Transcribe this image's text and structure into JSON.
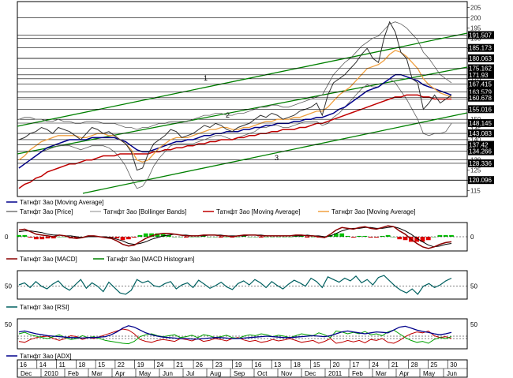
{
  "colors": {
    "price": "#303030",
    "bollinger": "#606060",
    "ma_long": "#c00000",
    "ma_mid": "#00008b",
    "ma_short": "#f0a040",
    "channel": "#008000",
    "macd": "#8b0000",
    "macd_signal": "#000000",
    "macd_hist_pos": "#00c000",
    "macd_hist_neg": "#e00000",
    "rsi": "#006060",
    "adx": "#00008b",
    "di_plus": "#00a000",
    "di_minus": "#c00000",
    "grid": "#000000"
  },
  "legend": {
    "main_row1": [
      "Татнфт 3ао [Moving Average]"
    ],
    "main_row2": [
      "Татнфт 3ао [Price]",
      "Татнфт 3ао [Bollinger Bands]",
      "Татнфт 3ао [Moving Average]",
      "Татнфт 3ао [Moving Average]"
    ],
    "macd_row": [
      "Татнфт 3ао [MACD]",
      "Татнфт 3ао [MACD Histogram]"
    ],
    "rsi_row": [
      "Татнфт 3ао [RSI]"
    ],
    "adx_row": [
      "Татнфт 3ао [ADX]"
    ]
  },
  "chart_data": [
    {
      "type": "line",
      "panel": "price",
      "ylim": [
        112,
        208
      ],
      "yticks": [
        115,
        120,
        125,
        130,
        135,
        140,
        145,
        150,
        155,
        160,
        165,
        170,
        175,
        180,
        185,
        190,
        195,
        200,
        205
      ],
      "value_labels": [
        "191.507",
        "185.173",
        "180.063",
        "175.162",
        "171.93",
        "167.415",
        "163.579",
        "160.678",
        "155.016",
        "148.145",
        "143.083",
        "137.42",
        "134.266",
        "128.336",
        "120.096"
      ],
      "channel_labels": [
        "1",
        "2",
        "3"
      ],
      "price": [
        140,
        141,
        143,
        144,
        146,
        145,
        143,
        146,
        145,
        144,
        142,
        140,
        143,
        146,
        145,
        143,
        144,
        142,
        140,
        138,
        134,
        125,
        126,
        133,
        138,
        140,
        142,
        145,
        144,
        141,
        142,
        143,
        145,
        147,
        146,
        148,
        147,
        145,
        144,
        146,
        147,
        148,
        150,
        152,
        151,
        153,
        152,
        150,
        151,
        152,
        154,
        155,
        156,
        158,
        152,
        162,
        168,
        170,
        172,
        175,
        178,
        182,
        185,
        180,
        178,
        190,
        198,
        193,
        183,
        180,
        170,
        168,
        155,
        158,
        162,
        158,
        160,
        162
      ],
      "bollinger_upper": [
        150,
        151,
        151,
        150,
        150,
        149,
        149,
        150,
        149,
        149,
        148,
        148,
        149,
        149,
        149,
        148,
        148,
        148,
        147,
        146,
        146,
        145,
        146,
        146,
        147,
        148,
        148,
        149,
        149,
        149,
        149,
        150,
        151,
        152,
        152,
        153,
        153,
        152,
        152,
        153,
        153,
        154,
        155,
        156,
        156,
        157,
        157,
        156,
        156,
        157,
        158,
        159,
        160,
        161,
        162,
        167,
        172,
        175,
        178,
        180,
        183,
        186,
        188,
        190,
        191,
        194,
        197,
        198,
        197,
        195,
        192,
        189,
        183,
        180,
        176,
        172,
        170,
        168
      ],
      "bollinger_lower": [
        126,
        128,
        130,
        132,
        134,
        135,
        136,
        137,
        137,
        137,
        136,
        135,
        136,
        137,
        137,
        137,
        136,
        134,
        131,
        127,
        121,
        116,
        117,
        121,
        127,
        131,
        134,
        137,
        138,
        138,
        138,
        138,
        139,
        140,
        141,
        142,
        142,
        141,
        140,
        141,
        142,
        143,
        144,
        146,
        146,
        147,
        147,
        146,
        146,
        147,
        148,
        149,
        149,
        149,
        147,
        148,
        151,
        153,
        156,
        159,
        162,
        165,
        167,
        166,
        166,
        168,
        170,
        168,
        164,
        160,
        155,
        150,
        143,
        142,
        143,
        143,
        144,
        148
      ],
      "ma_short": [
        130,
        132,
        135,
        137,
        139,
        140,
        141,
        142,
        142,
        142,
        142,
        141,
        141,
        142,
        143,
        143,
        142,
        142,
        140,
        138,
        135,
        130,
        129,
        130,
        133,
        136,
        138,
        140,
        141,
        141,
        141,
        142,
        143,
        144,
        145,
        145,
        146,
        146,
        145,
        145,
        146,
        146,
        147,
        148,
        149,
        149,
        150,
        150,
        150,
        151,
        151,
        152,
        153,
        154,
        154,
        156,
        159,
        162,
        164,
        166,
        169,
        172,
        175,
        176,
        177,
        179,
        182,
        184,
        183,
        181,
        178,
        175,
        170,
        167,
        165,
        163,
        162,
        161
      ],
      "ma_mid": [
        126,
        128,
        130,
        132,
        134,
        136,
        137,
        138,
        139,
        140,
        140,
        140,
        140,
        141,
        141,
        141,
        141,
        141,
        140,
        139,
        137,
        135,
        134,
        134,
        135,
        136,
        137,
        138,
        139,
        139,
        140,
        140,
        141,
        142,
        142,
        143,
        143,
        144,
        144,
        144,
        145,
        145,
        146,
        146,
        147,
        147,
        148,
        148,
        148,
        149,
        149,
        150,
        150,
        151,
        151,
        152,
        153,
        155,
        156,
        158,
        160,
        162,
        164,
        165,
        166,
        168,
        170,
        172,
        172,
        171,
        170,
        169,
        167,
        166,
        165,
        164,
        163,
        162
      ],
      "ma_long": [
        116,
        118,
        119,
        121,
        122,
        124,
        125,
        126,
        127,
        128,
        128,
        129,
        130,
        130,
        131,
        132,
        132,
        132,
        133,
        133,
        133,
        133,
        133,
        133,
        134,
        134,
        135,
        135,
        136,
        136,
        137,
        137,
        138,
        138,
        139,
        139,
        140,
        140,
        140,
        141,
        141,
        142,
        142,
        143,
        143,
        144,
        144,
        145,
        145,
        145,
        146,
        146,
        147,
        148,
        148,
        149,
        150,
        151,
        152,
        153,
        154,
        155,
        156,
        157,
        158,
        159,
        160,
        161,
        161,
        162,
        162,
        162,
        161,
        161,
        160,
        160,
        160,
        160
      ]
    },
    {
      "type": "line",
      "panel": "macd",
      "ylim": [
        -1.6,
        1.6
      ],
      "yticks": [
        0
      ],
      "macd": [
        0.8,
        0.9,
        0.6,
        0.3,
        0.2,
        0.1,
        0.0,
        0.2,
        0.1,
        -0.1,
        -0.2,
        -0.1,
        0.1,
        0.1,
        0.0,
        -0.1,
        -0.2,
        -0.5,
        -0.9,
        -1.1,
        -1.0,
        -0.6,
        -0.2,
        0.1,
        0.3,
        0.4,
        0.4,
        0.3,
        0.2,
        0.1,
        0.1,
        0.1,
        0.2,
        0.2,
        0.2,
        0.1,
        0.1,
        0.0,
        0.1,
        0.2,
        0.2,
        0.2,
        0.1,
        0.1,
        0.1,
        0.1,
        0.1,
        0.1,
        0.2,
        0.2,
        0.1,
        0.1,
        0.0,
        -0.1,
        0.3,
        0.8,
        1.1,
        1.0,
        0.9,
        1.1,
        1.2,
        1.0,
        0.9,
        1.1,
        1.3,
        1.2,
        0.7,
        0.3,
        -0.3,
        -0.8,
        -1.2,
        -1.4,
        -1.2,
        -0.9,
        -0.7,
        -0.6
      ],
      "signal": [
        0.6,
        0.7,
        0.7,
        0.6,
        0.5,
        0.3,
        0.2,
        0.2,
        0.1,
        0.1,
        0.0,
        -0.1,
        0.0,
        0.0,
        0.0,
        0.0,
        -0.1,
        -0.3,
        -0.5,
        -0.8,
        -0.9,
        -0.8,
        -0.6,
        -0.3,
        -0.1,
        0.1,
        0.2,
        0.3,
        0.2,
        0.2,
        0.1,
        0.1,
        0.1,
        0.2,
        0.2,
        0.2,
        0.1,
        0.1,
        0.1,
        0.1,
        0.2,
        0.2,
        0.2,
        0.1,
        0.1,
        0.1,
        0.1,
        0.1,
        0.1,
        0.1,
        0.2,
        0.1,
        0.1,
        0.0,
        0.1,
        0.4,
        0.7,
        0.9,
        1.0,
        1.0,
        1.1,
        1.1,
        1.0,
        1.0,
        1.1,
        1.2,
        1.0,
        0.7,
        0.3,
        -0.2,
        -0.6,
        -1.0,
        -1.2,
        -1.1,
        -0.9,
        -0.8
      ],
      "histogram": [
        0.2,
        0.2,
        -0.1,
        -0.3,
        -0.3,
        -0.2,
        -0.2,
        0.0,
        0.0,
        -0.2,
        -0.2,
        0.0,
        0.1,
        0.1,
        0.0,
        -0.1,
        -0.1,
        -0.2,
        -0.4,
        -0.3,
        -0.1,
        0.2,
        0.4,
        0.4,
        0.4,
        0.3,
        0.2,
        0.0,
        0.0,
        -0.1,
        0.0,
        0.0,
        0.1,
        0.0,
        0.0,
        -0.1,
        0.0,
        -0.1,
        0.0,
        0.1,
        0.0,
        0.0,
        -0.1,
        0.0,
        0.0,
        0.0,
        0.0,
        0.0,
        0.1,
        0.1,
        -0.1,
        0.0,
        -0.1,
        -0.1,
        0.2,
        0.4,
        0.4,
        0.1,
        -0.1,
        0.1,
        0.1,
        -0.1,
        -0.1,
        0.1,
        0.2,
        0.0,
        -0.3,
        -0.4,
        -0.6,
        -0.6,
        -0.6,
        -0.4,
        0.0,
        0.2,
        0.2,
        0.2
      ]
    },
    {
      "type": "line",
      "panel": "rsi",
      "ylim": [
        32,
        72
      ],
      "yticks": [
        50
      ],
      "rsi": [
        52,
        55,
        48,
        57,
        50,
        46,
        53,
        58,
        49,
        44,
        52,
        60,
        47,
        55,
        50,
        42,
        56,
        48,
        40,
        38,
        44,
        60,
        55,
        58,
        51,
        49,
        54,
        57,
        46,
        52,
        55,
        48,
        59,
        53,
        47,
        51,
        56,
        49,
        45,
        54,
        58,
        52,
        60,
        55,
        48,
        57,
        51,
        46,
        53,
        59,
        55,
        50,
        62,
        57,
        48,
        64,
        60,
        56,
        62,
        58,
        65,
        55,
        60,
        52,
        63,
        66,
        58,
        50,
        44,
        40,
        46,
        38,
        50,
        54,
        48,
        52,
        58,
        62
      ]
    },
    {
      "type": "line",
      "panel": "adx",
      "ylim": [
        0,
        60
      ],
      "yticks": [
        50
      ],
      "adx": [
        34,
        36,
        33,
        30,
        28,
        26,
        25,
        24,
        23,
        22,
        22,
        21,
        22,
        22,
        23,
        24,
        28,
        34,
        42,
        47,
        44,
        38,
        32,
        28,
        25,
        23,
        22,
        21,
        20,
        20,
        19,
        19,
        20,
        21,
        22,
        22,
        21,
        20,
        20,
        21,
        22,
        23,
        24,
        25,
        24,
        23,
        22,
        22,
        23,
        24,
        25,
        26,
        25,
        24,
        26,
        30,
        34,
        36,
        34,
        32,
        30,
        32,
        34,
        33,
        32,
        38,
        44,
        46,
        42,
        38,
        35,
        33,
        30,
        28,
        30,
        33
      ],
      "di_plus": [
        30,
        33,
        28,
        25,
        22,
        20,
        24,
        28,
        22,
        18,
        20,
        26,
        22,
        24,
        20,
        16,
        14,
        12,
        10,
        9,
        14,
        24,
        28,
        30,
        26,
        24,
        26,
        28,
        22,
        24,
        27,
        22,
        28,
        26,
        22,
        24,
        27,
        22,
        20,
        25,
        28,
        26,
        30,
        28,
        24,
        27,
        25,
        22,
        26,
        30,
        28,
        26,
        32,
        28,
        22,
        36,
        34,
        30,
        33,
        30,
        35,
        28,
        30,
        26,
        34,
        38,
        30,
        22,
        16,
        12,
        14,
        10,
        18,
        22,
        20,
        24
      ],
      "di_minus": [
        14,
        12,
        18,
        22,
        24,
        25,
        20,
        16,
        20,
        26,
        24,
        18,
        22,
        20,
        24,
        28,
        32,
        36,
        40,
        38,
        30,
        18,
        14,
        12,
        16,
        18,
        16,
        14,
        20,
        18,
        15,
        20,
        14,
        16,
        20,
        18,
        15,
        20,
        22,
        17,
        14,
        16,
        12,
        14,
        18,
        15,
        17,
        20,
        16,
        12,
        14,
        16,
        10,
        14,
        20,
        10,
        12,
        16,
        13,
        16,
        11,
        18,
        16,
        20,
        12,
        10,
        16,
        24,
        30,
        34,
        32,
        36,
        26,
        22,
        24,
        20
      ]
    }
  ],
  "time_axis": {
    "top": [
      "16",
      "14",
      "11",
      "18",
      "15",
      "22",
      "19",
      "24",
      "21",
      "26",
      "23",
      "19",
      "16",
      "13",
      "18",
      "15",
      "20",
      "17",
      "24",
      "21",
      "28",
      "25",
      "30"
    ],
    "bottom": [
      "Dec",
      "2010",
      "Feb",
      "Mar",
      "Apr",
      "May",
      "Jun",
      "Jul",
      "Aug",
      "Sep",
      "Oct",
      "Nov",
      "Dec",
      "2011",
      "Feb",
      "Mar",
      "Apr",
      "May",
      "Jun"
    ]
  }
}
